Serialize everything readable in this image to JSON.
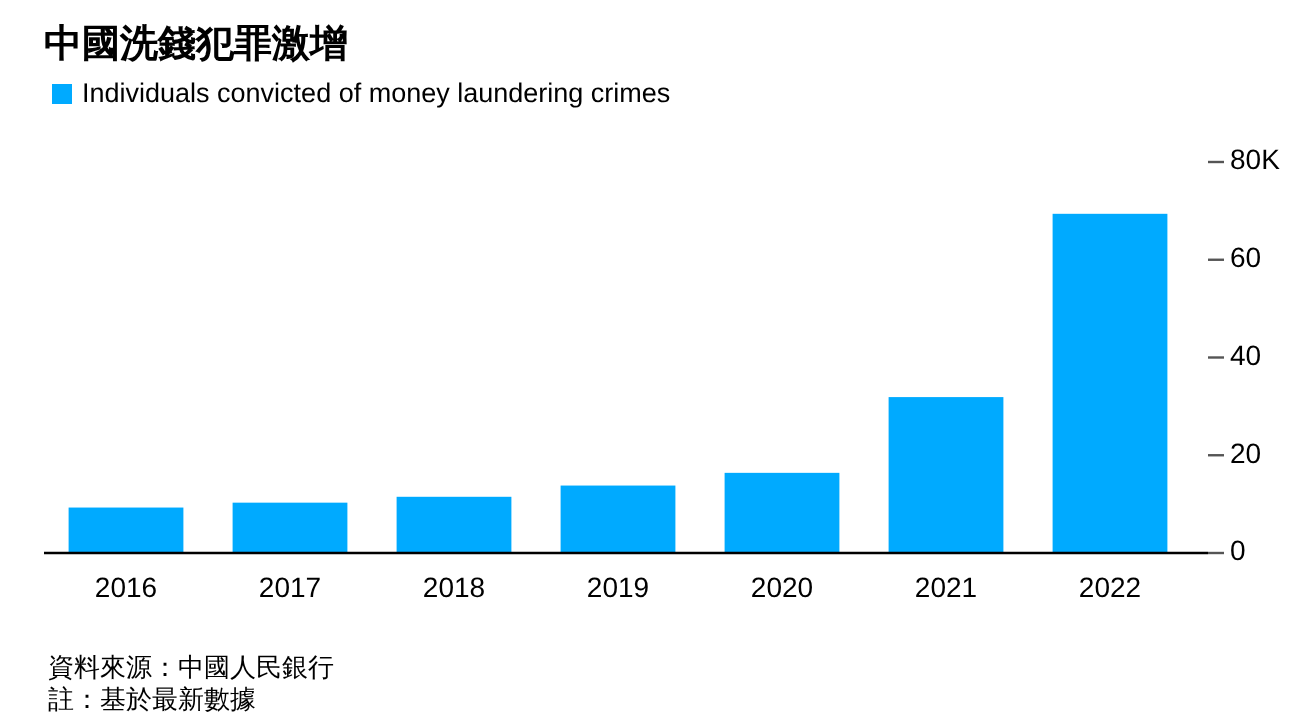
{
  "chart_data": {
    "type": "bar",
    "title": "中國洗錢犯罪激增",
    "categories": [
      "2016",
      "2017",
      "2018",
      "2019",
      "2020",
      "2021",
      "2022"
    ],
    "series": [
      {
        "name": "Individuals convicted of money laundering crimes",
        "color": "#00aaff",
        "values": [
          9.3,
          10.3,
          11.5,
          13.8,
          16.4,
          31.9,
          69.4
        ]
      }
    ],
    "ylim": [
      0,
      80
    ],
    "yticks": [
      0,
      20,
      40,
      60,
      {
        "value": 80,
        "label": "80K"
      }
    ],
    "legend": "top left",
    "annotations": [
      "資料來源：中國人民銀行",
      "註：基於最新數據"
    ]
  }
}
